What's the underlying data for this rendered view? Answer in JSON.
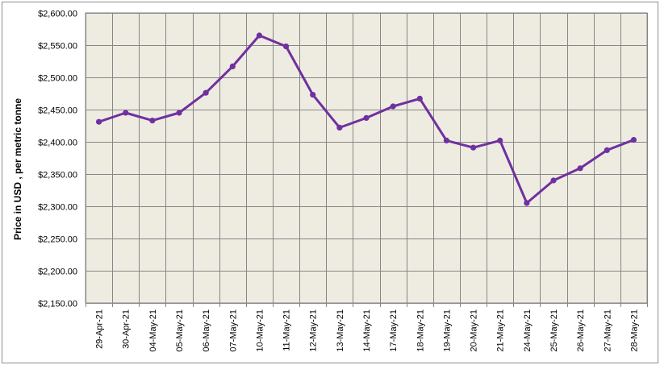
{
  "chart_data": {
    "type": "line",
    "title": "",
    "xlabel": "",
    "ylabel": "Price in USD , per metric tonne",
    "ylim": [
      2150,
      2600
    ],
    "ystep": 50,
    "ytick_labels": [
      "$2,150.00",
      "$2,200.00",
      "$2,250.00",
      "$2,300.00",
      "$2,350.00",
      "$2,400.00",
      "$2,450.00",
      "$2,500.00",
      "$2,550.00",
      "$2,600.00"
    ],
    "categories": [
      "29-Apr-21",
      "30-Apr-21",
      "04-May-21",
      "05-May-21",
      "06-May-21",
      "07-May-21",
      "10-May-21",
      "11-May-21",
      "12-May-21",
      "13-May-21",
      "14-May-21",
      "17-May-21",
      "18-May-21",
      "19-May-21",
      "20-May-21",
      "21-May-21",
      "24-May-21",
      "25-May-21",
      "26-May-21",
      "27-May-21",
      "28-May-21"
    ],
    "series": [
      {
        "values": [
          2431,
          2445,
          2433,
          2445,
          2476,
          2517,
          2565,
          2548,
          2473,
          2422,
          2437,
          2455,
          2467,
          2402,
          2391,
          2402,
          2305,
          2340,
          2359,
          2387,
          2403
        ]
      }
    ],
    "grid": true,
    "legend": "none",
    "colors": {
      "plot_background": "#eeece1",
      "gridline": "#868686",
      "line": "#7030a0"
    }
  }
}
